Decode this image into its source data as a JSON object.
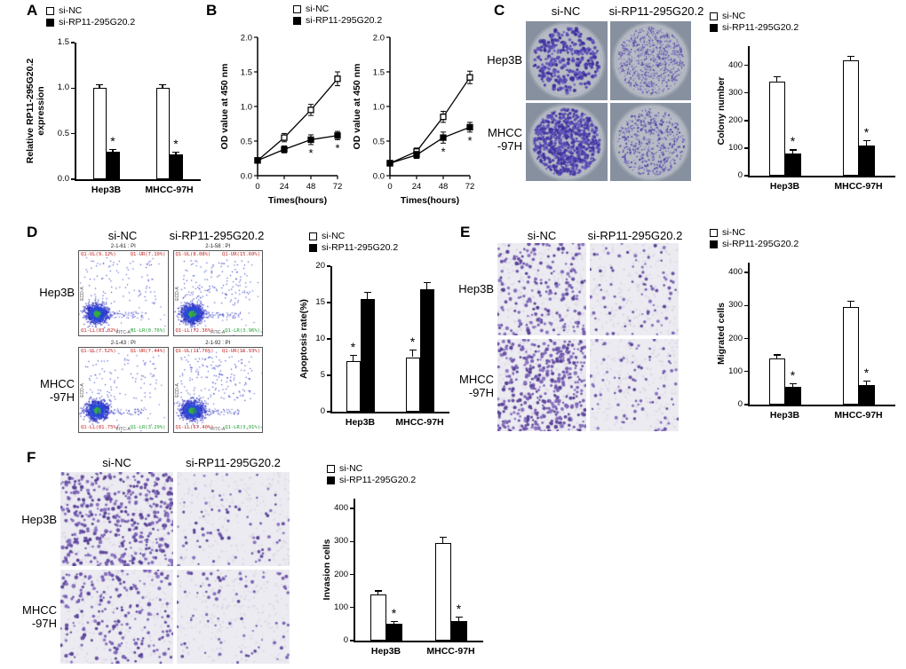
{
  "colors": {
    "bar_open": "#ffffff",
    "bar_filled": "#000000",
    "crystal_violet": "#4a3aa0",
    "flow_dot_blue": "#2a2fc2",
    "flow_dot_green": "#35b043"
  },
  "panels": {
    "A": {
      "label": "A",
      "legend": [
        {
          "name": "si-NC",
          "fill": "white"
        },
        {
          "name": "si-RP11-295G20.2",
          "fill": "black"
        }
      ],
      "chart_data": {
        "type": "bar",
        "title": "",
        "ylabel": "Relative RP11-295G20.2\nexpression",
        "ylim": [
          0,
          1.5
        ],
        "yticks": [
          "0.0",
          "0.5",
          "1.0",
          "1.5"
        ],
        "categories": [
          "Hep3B",
          "MHCC-97H"
        ],
        "series": [
          {
            "name": "si-NC",
            "fill": "white",
            "values": [
              1.0,
              1.0
            ],
            "errors": [
              0.04,
              0.04
            ],
            "sig": [
              null,
              null
            ]
          },
          {
            "name": "si-RP11-295G20.2",
            "fill": "black",
            "values": [
              0.3,
              0.27
            ],
            "errors": [
              0.03,
              0.03
            ],
            "sig": [
              "*",
              "*"
            ]
          }
        ]
      }
    },
    "B": {
      "label": "B",
      "legend": [
        {
          "name": "si-NC",
          "fill": "white"
        },
        {
          "name": "si-RP11-295G20.2",
          "fill": "black"
        }
      ],
      "charts": [
        {
          "type": "line",
          "ylabel": "OD value at 450 nm",
          "xlabel": "Times(hours)",
          "ylim": [
            0,
            2.0
          ],
          "yticks": [
            "0.0",
            "0.5",
            "1.0",
            "1.5",
            "2.0"
          ],
          "x": [
            0,
            24,
            48,
            72
          ],
          "series": [
            {
              "name": "si-NC",
              "marker": "open",
              "values": [
                0.22,
                0.55,
                0.95,
                1.4
              ],
              "errors": [
                0.03,
                0.06,
                0.08,
                0.1
              ],
              "sig": [
                null,
                null,
                null,
                null
              ]
            },
            {
              "name": "si-RP11-295G20.2",
              "marker": "filled",
              "values": [
                0.22,
                0.38,
                0.52,
                0.58
              ],
              "errors": [
                0.03,
                0.05,
                0.07,
                0.06
              ],
              "sig": [
                null,
                null,
                "*",
                "*"
              ]
            }
          ]
        },
        {
          "type": "line",
          "ylabel": "OD value at 450 nm",
          "xlabel": "Times(hours)",
          "ylim": [
            0,
            2.0
          ],
          "yticks": [
            "0.0",
            "0.5",
            "1.0",
            "1.5",
            "2.0"
          ],
          "x": [
            0,
            24,
            48,
            72
          ],
          "series": [
            {
              "name": "si-NC",
              "marker": "open",
              "values": [
                0.18,
                0.35,
                0.85,
                1.42
              ],
              "errors": [
                0.03,
                0.05,
                0.08,
                0.09
              ],
              "sig": [
                null,
                null,
                null,
                null
              ]
            },
            {
              "name": "si-RP11-295G20.2",
              "marker": "filled",
              "values": [
                0.18,
                0.3,
                0.55,
                0.7
              ],
              "errors": [
                0.03,
                0.05,
                0.08,
                0.07
              ],
              "sig": [
                null,
                null,
                "*",
                "*"
              ]
            }
          ]
        }
      ]
    },
    "C": {
      "label": "C",
      "col_headers": [
        "si-NC",
        "si-RP11-295G20.2"
      ],
      "row_headers": [
        "Hep3B",
        "MHCC\n-97H"
      ],
      "legend": [
        {
          "name": "si-NC",
          "fill": "white"
        },
        {
          "name": "si-RP11-295G20.2",
          "fill": "black"
        }
      ],
      "images": [
        {
          "row": "Hep3B",
          "col": "si-NC",
          "density": "dense-large"
        },
        {
          "row": "Hep3B",
          "col": "si-RP11-295G20.2",
          "density": "fine"
        },
        {
          "row": "MHCC-97H",
          "col": "si-NC",
          "density": "very-dense"
        },
        {
          "row": "MHCC-97H",
          "col": "si-RP11-295G20.2",
          "density": "medium-fine"
        }
      ],
      "chart_data": {
        "type": "bar",
        "ylabel": "Colony number",
        "ylim": [
          0,
          470
        ],
        "yticks": [
          "0",
          "100",
          "200",
          "300",
          "400"
        ],
        "categories": [
          "Hep3B",
          "MHCC-97H"
        ],
        "series": [
          {
            "name": "si-NC",
            "fill": "white",
            "values": [
              340,
              420
            ],
            "errors": [
              20,
              15
            ],
            "sig": [
              null,
              null
            ]
          },
          {
            "name": "si-RP11-295G20.2",
            "fill": "black",
            "values": [
              80,
              110
            ],
            "errors": [
              15,
              20
            ],
            "sig": [
              "*",
              "*"
            ]
          }
        ]
      }
    },
    "D": {
      "label": "D",
      "col_headers": [
        "si-NC",
        "si-RP11-295G20.2"
      ],
      "row_headers": [
        "Hep3B",
        "MHCC\n-97H"
      ],
      "legend": [
        {
          "name": "si-NC",
          "fill": "white"
        },
        {
          "name": "si-RP11-295G20.2",
          "fill": "black"
        }
      ],
      "axis_x": "FITC-A",
      "axis_y": "ECD-A",
      "plots": [
        {
          "title": "2-1-61 : PI",
          "upper": 0.17,
          "quadrants": {
            "UL": "Q1-UL(9.12%)",
            "UR": "Q1-UR(7.10%)",
            "LL": "Q1-LL(83.02%)",
            "LR": "Q1-LR(0.76%)"
          }
        },
        {
          "title": "2-1-58 : PI",
          "upper": 0.27,
          "quadrants": {
            "UL": "Q1-UL(8.08%)",
            "UR": "Q1-UR(15.60%)",
            "LL": "Q1-LL(72.36%)",
            "LR": "Q1-LR(3.96%)"
          }
        },
        {
          "title": "2-1-43 : PI",
          "upper": 0.17,
          "quadrants": {
            "UL": "Q1-UL(7.52%)",
            "UR": "Q1-UR(7.44%)",
            "LL": "Q1-LL(81.75%)",
            "LR": "Q1-LR(3.29%)"
          }
        },
        {
          "title": "2-1-92 : PI",
          "upper": 0.3,
          "quadrants": {
            "UL": "Q1-UL(11.76%)",
            "UR": "Q1-UR(16.93%)",
            "LL": "Q1-LL(67.40%)",
            "LR": "Q1-LR(3.91%)"
          }
        }
      ],
      "chart_data": {
        "type": "bar",
        "ylabel": "Apoptosis rate(%)",
        "ylim": [
          0,
          20
        ],
        "yticks": [
          "0",
          "5",
          "10",
          "15",
          "20"
        ],
        "categories": [
          "Hep3B",
          "MHCC-97H"
        ],
        "series": [
          {
            "name": "si-NC",
            "fill": "white",
            "values": [
              7.0,
              7.5
            ],
            "errors": [
              0.8,
              1.0
            ],
            "sig": [
              "*",
              "*"
            ]
          },
          {
            "name": "si-RP11-295G20.2",
            "fill": "black",
            "values": [
              15.5,
              16.8
            ],
            "errors": [
              1.0,
              1.0
            ],
            "sig": [
              null,
              null
            ]
          }
        ]
      }
    },
    "E": {
      "label": "E",
      "col_headers": [
        "si-NC",
        "si-RP11-295G20.2"
      ],
      "row_headers": [
        "Hep3B",
        "MHCC\n-97H"
      ],
      "legend": [
        {
          "name": "si-NC",
          "fill": "white"
        },
        {
          "name": "si-RP11-295G20.2",
          "fill": "black"
        }
      ],
      "images": [
        {
          "row": "Hep3B",
          "col": "si-NC",
          "density": "high"
        },
        {
          "row": "Hep3B",
          "col": "si-RP11-295G20.2",
          "density": "low"
        },
        {
          "row": "MHCC-97H",
          "col": "si-NC",
          "density": "very-high"
        },
        {
          "row": "MHCC-97H",
          "col": "si-RP11-295G20.2",
          "density": "low"
        }
      ],
      "chart_data": {
        "type": "bar",
        "ylabel": "Migrated cells",
        "ylim": [
          0,
          430
        ],
        "yticks": [
          "0",
          "100",
          "200",
          "300",
          "400"
        ],
        "categories": [
          "Hep3B",
          "MHCC-97H"
        ],
        "series": [
          {
            "name": "si-NC",
            "fill": "white",
            "values": [
              140,
              295
            ],
            "errors": [
              12,
              20
            ],
            "sig": [
              null,
              null
            ]
          },
          {
            "name": "si-RP11-295G20.2",
            "fill": "black",
            "values": [
              55,
              60
            ],
            "errors": [
              10,
              12
            ],
            "sig": [
              "*",
              "*"
            ]
          }
        ]
      }
    },
    "F": {
      "label": "F",
      "col_headers": [
        "si-NC",
        "si-RP11-295G20.2"
      ],
      "row_headers": [
        "Hep3B",
        "MHCC\n-97H"
      ],
      "legend": [
        {
          "name": "si-NC",
          "fill": "white"
        },
        {
          "name": "si-RP11-295G20.2",
          "fill": "black"
        }
      ],
      "images": [
        {
          "row": "Hep3B",
          "col": "si-NC",
          "density": "very-high"
        },
        {
          "row": "Hep3B",
          "col": "si-RP11-295G20.2",
          "density": "low"
        },
        {
          "row": "MHCC-97H",
          "col": "si-NC",
          "density": "high"
        },
        {
          "row": "MHCC-97H",
          "col": "si-RP11-295G20.2",
          "density": "low"
        }
      ],
      "chart_data": {
        "type": "bar",
        "ylabel": "Invasion cells",
        "ylim": [
          0,
          430
        ],
        "yticks": [
          "0",
          "100",
          "200",
          "300",
          "400"
        ],
        "categories": [
          "Hep3B",
          "MHCC-97H"
        ],
        "series": [
          {
            "name": "si-NC",
            "fill": "white",
            "values": [
              140,
              295
            ],
            "errors": [
              12,
              20
            ],
            "sig": [
              null,
              null
            ]
          },
          {
            "name": "si-RP11-295G20.2",
            "fill": "black",
            "values": [
              50,
              60
            ],
            "errors": [
              10,
              12
            ],
            "sig": [
              "*",
              "*"
            ]
          }
        ]
      }
    }
  }
}
